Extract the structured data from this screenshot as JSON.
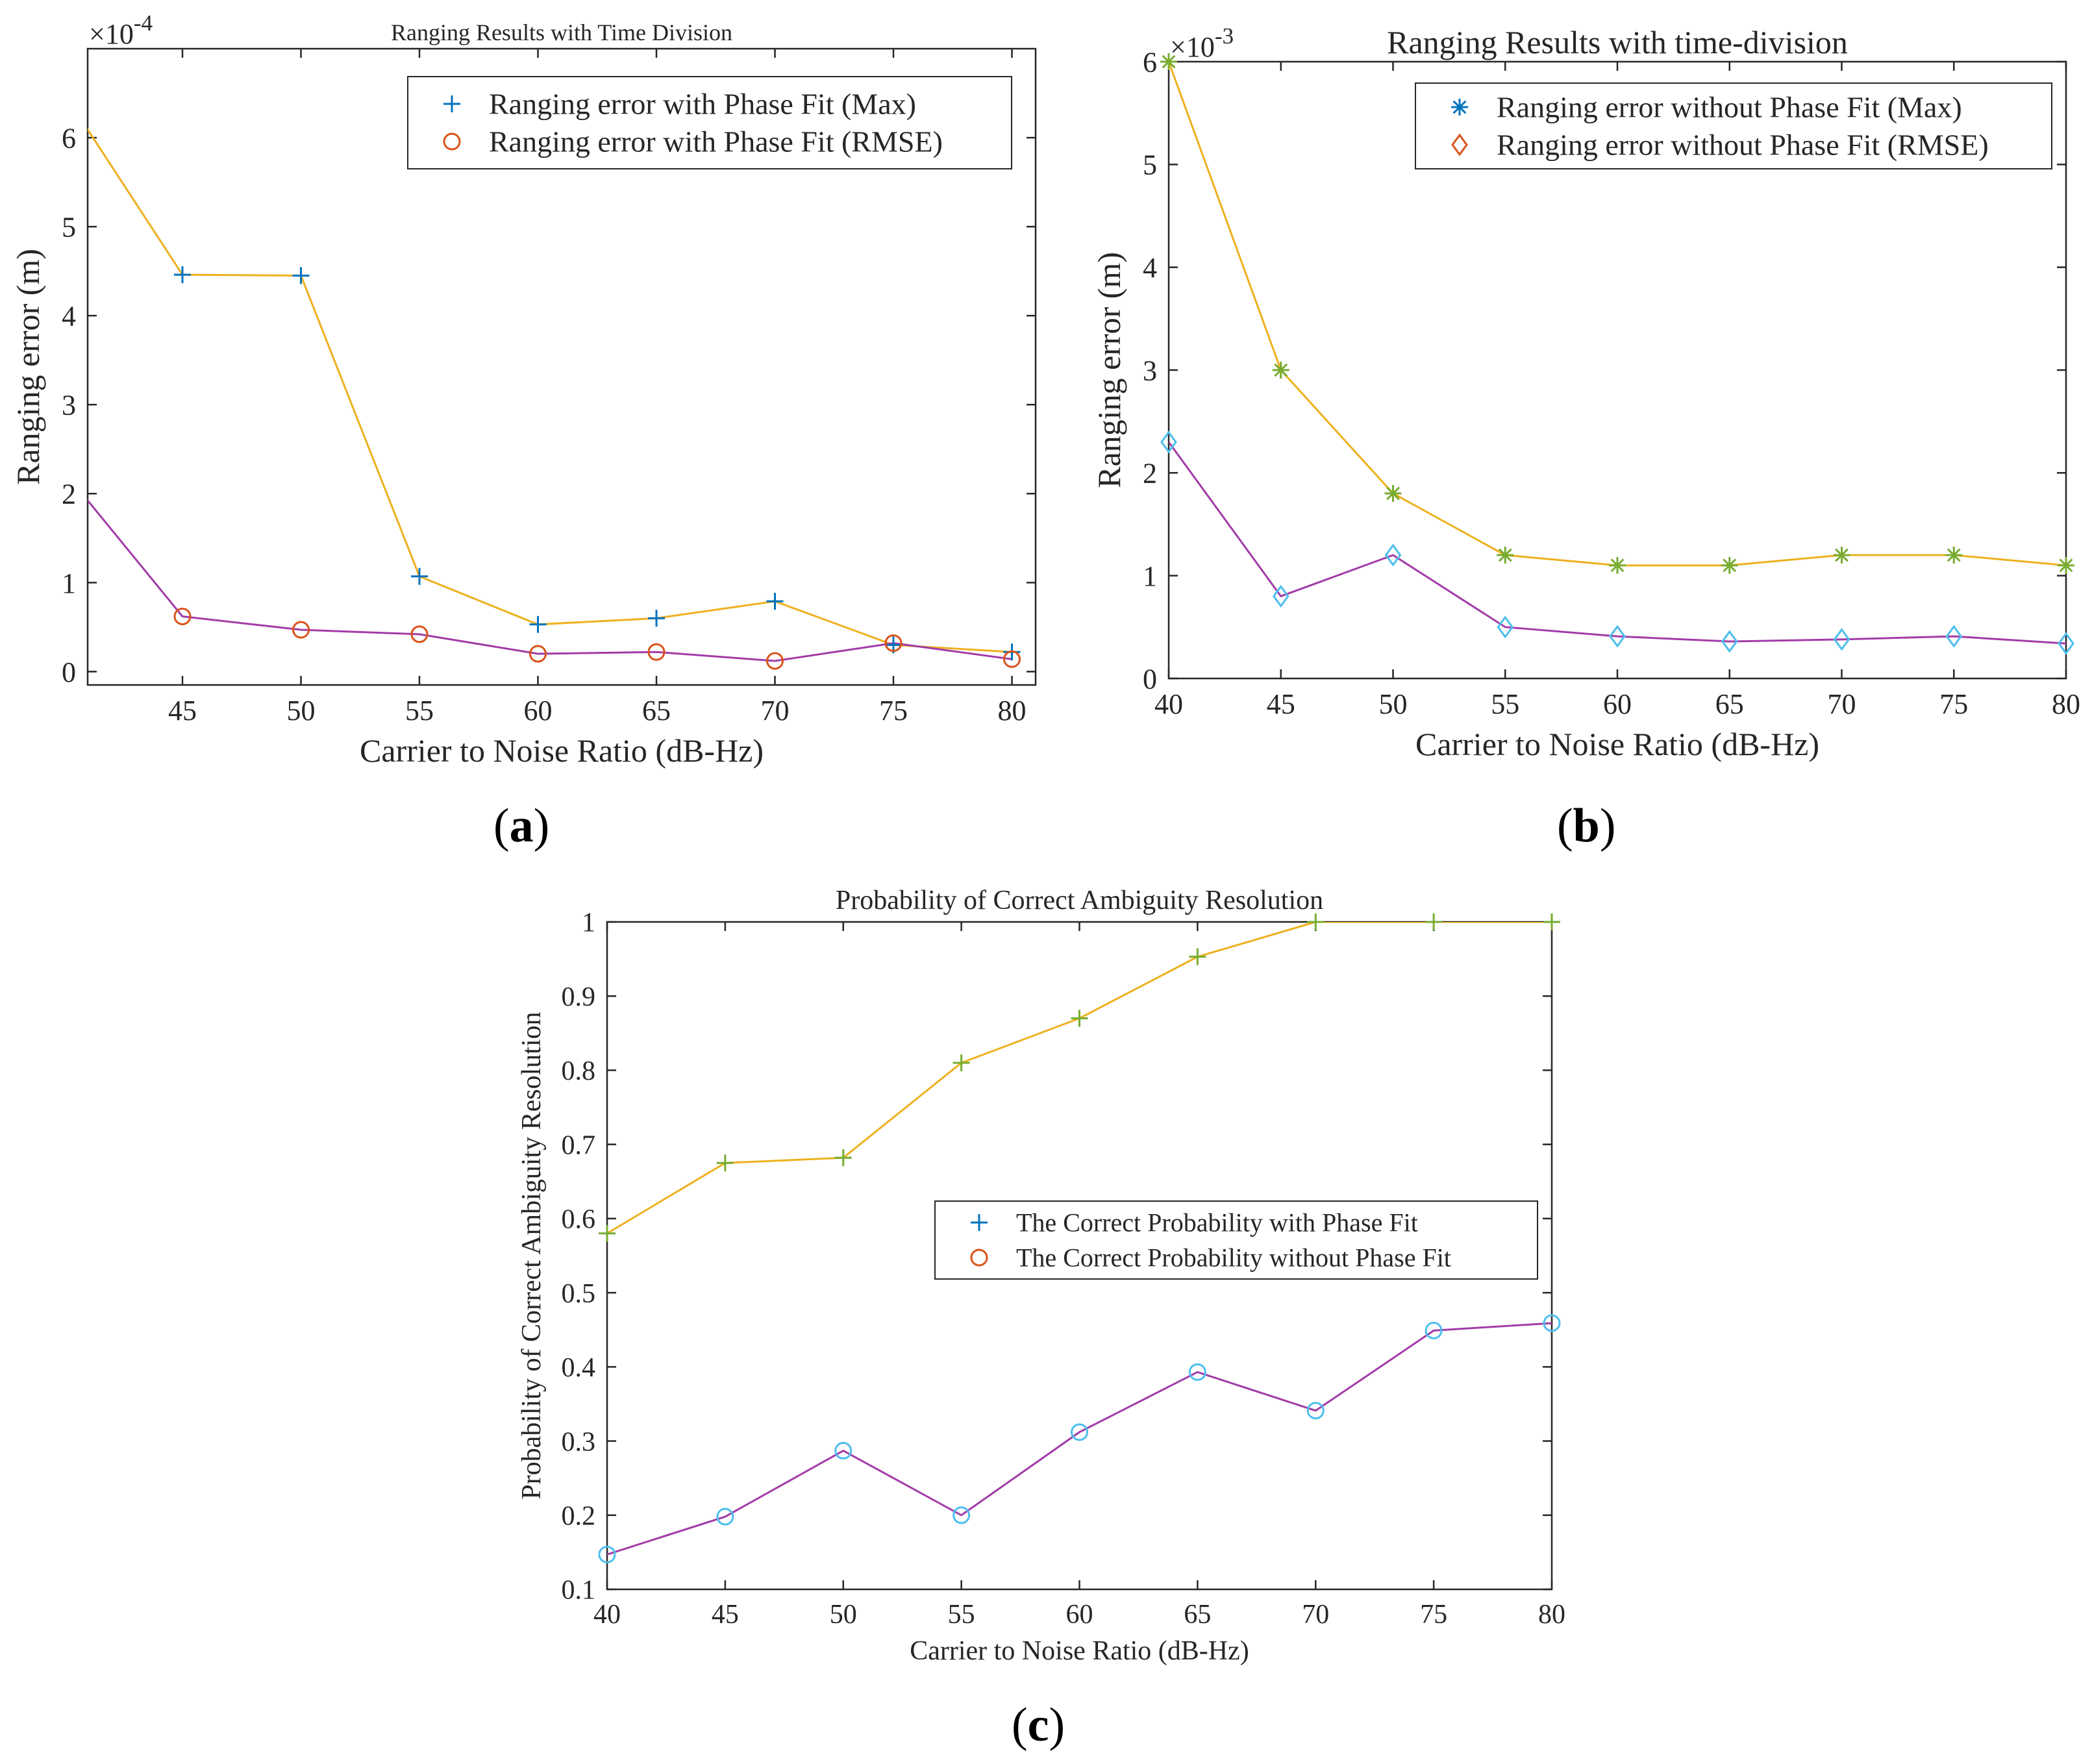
{
  "colors": {
    "yellow_line": "#EDB120",
    "purple_line": "#A23CA8",
    "blue_marker": "#0072BD",
    "red_marker": "#D95319",
    "green_marker": "#77AC30",
    "cyan_marker": "#4DBEEE",
    "axis": "#262626"
  },
  "panels": {
    "a": "a",
    "b": "b",
    "c": "c"
  },
  "chart_data": [
    {
      "id": "a",
      "type": "line",
      "title": "Ranging Results with Time Division",
      "xlabel": "Carrier to Noise Ratio (dB-Hz)",
      "ylabel": "Ranging error (m)",
      "exponent_label": "×10",
      "exponent": "-4",
      "xlim": [
        41,
        81
      ],
      "ylim": [
        -0.15,
        7.0
      ],
      "xticks": [
        45,
        50,
        55,
        60,
        65,
        70,
        75,
        80
      ],
      "yticks": [
        0,
        1,
        2,
        3,
        4,
        5,
        6
      ],
      "legend_position": "top-right",
      "legend": [
        {
          "label": "Ranging error with Phase Fit (Max)",
          "marker": "plus",
          "color": "#0072BD"
        },
        {
          "label": "Ranging error with Phase Fit (RMSE)",
          "marker": "circle",
          "color": "#D95319"
        }
      ],
      "x": [
        40,
        45,
        50,
        55,
        60,
        65,
        70,
        75,
        80
      ],
      "series": [
        {
          "line_color": "#EDB120",
          "marker": "plus",
          "marker_color": "#0072BD",
          "values": [
            6.5,
            4.46,
            4.45,
            1.07,
            0.53,
            0.6,
            0.79,
            0.3,
            0.22
          ]
        },
        {
          "line_color": "#A23CA8",
          "marker": "circle",
          "marker_color": "#D95319",
          "values": [
            2.25,
            0.62,
            0.47,
            0.42,
            0.2,
            0.22,
            0.12,
            0.32,
            0.14
          ]
        }
      ]
    },
    {
      "id": "b",
      "type": "line",
      "title": "Ranging Results with time-division",
      "xlabel": "Carrier to Noise Ratio (dB-Hz)",
      "ylabel": "Ranging error (m)",
      "exponent_label": "×10",
      "exponent": "-3",
      "xlim": [
        40,
        80
      ],
      "ylim": [
        0,
        6
      ],
      "xticks": [
        40,
        45,
        50,
        55,
        60,
        65,
        70,
        75,
        80
      ],
      "yticks": [
        0,
        1,
        2,
        3,
        4,
        5,
        6
      ],
      "legend_position": "top-right",
      "legend": [
        {
          "label": "Ranging error without Phase Fit (Max)",
          "marker": "asterisk",
          "color": "#0072BD"
        },
        {
          "label": "Ranging error without Phase Fit (RMSE)",
          "marker": "diamond",
          "color": "#D95319"
        }
      ],
      "x": [
        40,
        45,
        50,
        55,
        60,
        65,
        70,
        75,
        80
      ],
      "series": [
        {
          "line_color": "#EDB120",
          "marker": "asterisk",
          "marker_color": "#77AC30",
          "values": [
            6.0,
            3.0,
            1.8,
            1.2,
            1.1,
            1.1,
            1.2,
            1.2,
            1.1
          ]
        },
        {
          "line_color": "#A23CA8",
          "marker": "diamond",
          "marker_color": "#4DBEEE",
          "values": [
            2.3,
            0.8,
            1.2,
            0.5,
            0.41,
            0.36,
            0.38,
            0.41,
            0.34
          ]
        }
      ]
    },
    {
      "id": "c",
      "type": "line",
      "title": "Probability of Correct Ambiguity Resolution",
      "xlabel": "Carrier to Noise Ratio (dB-Hz)",
      "ylabel": "Probability of Correct Ambiguity Resolution",
      "xlim": [
        40,
        80
      ],
      "ylim": [
        0.1,
        1.0
      ],
      "xticks": [
        40,
        45,
        50,
        55,
        60,
        65,
        70,
        75,
        80
      ],
      "yticks": [
        0.1,
        0.2,
        0.3,
        0.4,
        0.5,
        0.6,
        0.7,
        0.8,
        0.9,
        1
      ],
      "legend_position": "center-right",
      "legend": [
        {
          "label": "The Correct Probability with Phase Fit",
          "marker": "plus",
          "color": "#0072BD"
        },
        {
          "label": "The Correct Probability without Phase Fit",
          "marker": "circle",
          "color": "#D95319"
        }
      ],
      "x": [
        40,
        45,
        50,
        55,
        60,
        65,
        70,
        75,
        80
      ],
      "series": [
        {
          "line_color": "#EDB120",
          "marker": "plus",
          "marker_color": "#77AC30",
          "values": [
            0.58,
            0.675,
            0.682,
            0.81,
            0.87,
            0.953,
            1.0,
            1.0,
            1.0
          ]
        },
        {
          "line_color": "#A23CA8",
          "marker": "circle",
          "marker_color": "#4DBEEE",
          "values": [
            0.147,
            0.198,
            0.287,
            0.2,
            0.312,
            0.393,
            0.341,
            0.449,
            0.459
          ]
        }
      ]
    }
  ]
}
